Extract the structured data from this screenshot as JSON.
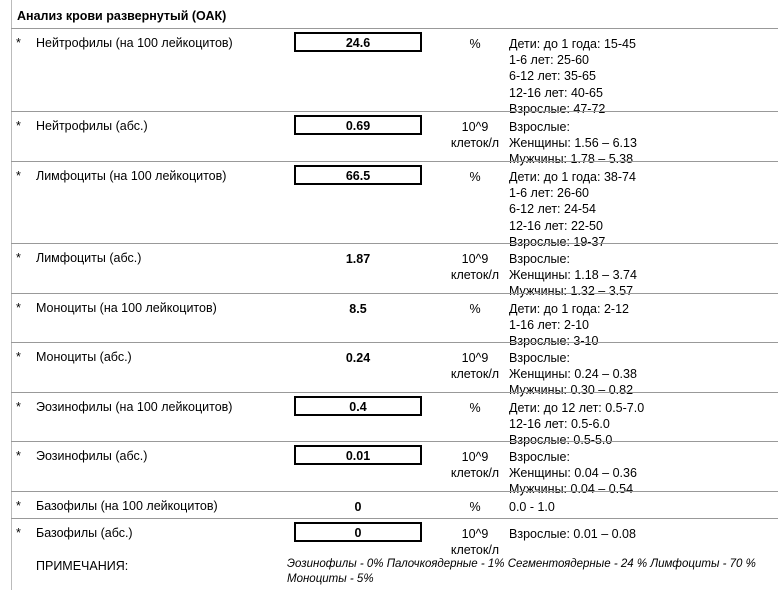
{
  "title": "Анализ крови развернутый (ОАК)",
  "rows": [
    {
      "marker": "*",
      "name": "Нейтрофилы (на 100 лейкоцитов)",
      "value": "24.6",
      "boxed": true,
      "unit": [
        "%"
      ],
      "ref": [
        "Дети: до 1 года: 15-45",
        "1-6 лет: 25-60",
        "6-12 лет: 35-65",
        "12-16 лет: 40-65",
        "Взрослые: 47-72"
      ]
    },
    {
      "marker": "*",
      "name": "Нейтрофилы (абс.)",
      "value": "0.69",
      "boxed": true,
      "unit": [
        "10^9",
        "клеток/л"
      ],
      "ref": [
        "Взрослые:",
        "Женщины: 1.56 – 6.13",
        "Мужчины: 1.78 – 5.38"
      ]
    },
    {
      "marker": "*",
      "name": "Лимфоциты (на 100 лейкоцитов)",
      "value": "66.5",
      "boxed": true,
      "unit": [
        "%"
      ],
      "ref": [
        "Дети: до 1 года: 38-74",
        "1-6 лет: 26-60",
        "6-12 лет: 24-54",
        "12-16 лет: 22-50",
        "Взрослые: 19-37"
      ]
    },
    {
      "marker": "*",
      "name": "Лимфоциты (абс.)",
      "value": "1.87",
      "boxed": false,
      "unit": [
        "10^9",
        "клеток/л"
      ],
      "ref": [
        "Взрослые:",
        "Женщины: 1.18 – 3.74",
        "Мужчины: 1.32 – 3.57"
      ]
    },
    {
      "marker": "*",
      "name": "Моноциты (на 100 лейкоцитов)",
      "value": "8.5",
      "boxed": false,
      "unit": [
        "%"
      ],
      "ref": [
        "Дети: до 1 года: 2-12",
        "1-16 лет: 2-10",
        "Взрослые: 3-10"
      ]
    },
    {
      "marker": "*",
      "name": "Моноциты (абс.)",
      "value": "0.24",
      "boxed": false,
      "unit": [
        "10^9",
        "клеток/л"
      ],
      "ref": [
        "Взрослые:",
        "Женщины: 0.24 – 0.38",
        "Мужчины: 0.30 – 0.82"
      ]
    },
    {
      "marker": "*",
      "name": "Эозинофилы (на 100 лейкоцитов)",
      "value": "0.4",
      "boxed": true,
      "unit": [
        "%"
      ],
      "ref": [
        "Дети: до 12 лет: 0.5-7.0",
        "12-16 лет: 0.5-6.0",
        "Взрослые: 0.5-5.0"
      ]
    },
    {
      "marker": "*",
      "name": "Эозинофилы (абс.)",
      "value": "0.01",
      "boxed": true,
      "unit": [
        "10^9",
        "клеток/л"
      ],
      "ref": [
        "Взрослые:",
        "Женщины: 0.04 – 0.36",
        "Мужчины: 0.04 – 0.54"
      ]
    },
    {
      "marker": "*",
      "name": "Базофилы (на 100 лейкоцитов)",
      "value": "0",
      "boxed": false,
      "unit": [
        "%"
      ],
      "ref": [
        "0.0 - 1.0"
      ]
    },
    {
      "marker": "*",
      "name": "Базофилы (абс.)",
      "value": "0",
      "boxed": true,
      "unit": [
        "10^9",
        "клеток/л"
      ],
      "ref": [
        "Взрослые: 0.01 – 0.08"
      ]
    }
  ],
  "notes": {
    "label": "ПРИМЕЧАНИЯ:",
    "text": "Эозинофилы - 0% Палочкоядерные - 1% Сегментоядерные - 24 % Лимфоциты - 70 % Моноциты - 5%"
  }
}
